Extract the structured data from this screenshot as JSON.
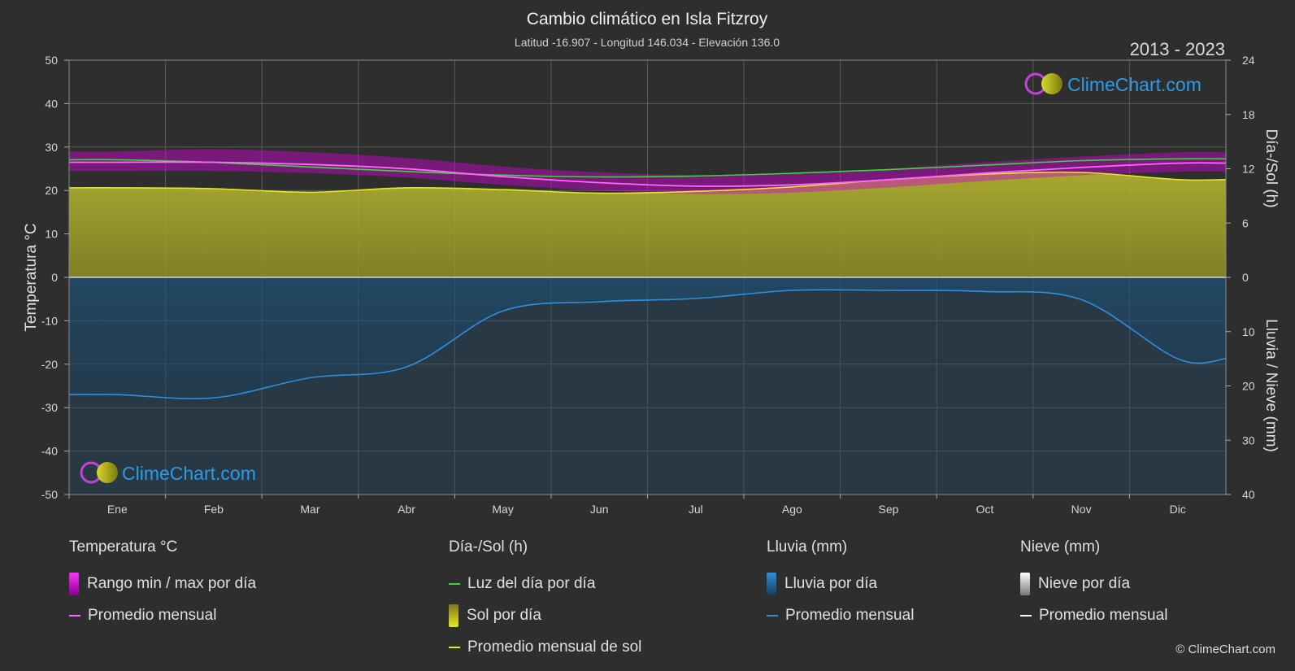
{
  "header": {
    "title": "Cambio climático en Isla Fitzroy",
    "subtitle": "Latitud -16.907 - Longitud 146.034 - Elevación 136.0",
    "years": "2013 - 2023"
  },
  "watermark": {
    "text": "ClimeChart.com"
  },
  "copyright": "© ClimeChart.com",
  "colors": {
    "background": "#2e2e2e",
    "temp_range": "#d400d4",
    "temp_avg": "#ff66ff",
    "daylight": "#33dd33",
    "sunshine_fill": "#b6b62c",
    "sunshine_avg": "#e8e822",
    "rain_fill": "#1f5e8f",
    "rain_avg": "#2e8fe0",
    "snow_avg": "#ffffff",
    "brand": "#2c9be8"
  },
  "chart_data": {
    "type": "line",
    "x_categories": [
      "Ene",
      "Feb",
      "Mar",
      "Abr",
      "May",
      "Jun",
      "Jul",
      "Ago",
      "Sep",
      "Oct",
      "Nov",
      "Dic"
    ],
    "axes": {
      "left": {
        "label": "Temperatura °C",
        "range": [
          -50,
          50
        ],
        "ticks": [
          50,
          40,
          30,
          20,
          10,
          0,
          -10,
          -20,
          -30,
          -40,
          -50
        ]
      },
      "right_top": {
        "label": "Día-/Sol (h)",
        "range": [
          0,
          24
        ],
        "ticks": [
          24,
          18,
          12,
          6,
          0
        ]
      },
      "right_bottom": {
        "label": "Lluvia / Nieve (mm)",
        "range": [
          0,
          40
        ],
        "ticks": [
          10,
          20,
          30,
          40
        ]
      }
    },
    "grid": true,
    "series": [
      {
        "name": "Luz del día por día",
        "axis": "hours",
        "values": [
          13.0,
          12.7,
          12.2,
          11.7,
          11.3,
          11.1,
          11.2,
          11.5,
          11.9,
          12.4,
          12.9,
          13.1
        ]
      },
      {
        "name": "Promedio mensual de sol",
        "axis": "hours",
        "values": [
          9.9,
          9.8,
          9.4,
          9.9,
          9.7,
          9.3,
          9.5,
          10.0,
          10.8,
          11.4,
          11.6,
          10.8
        ]
      },
      {
        "name": "Promedio mensual",
        "group": "temperature",
        "axis": "temp",
        "values": [
          26.5,
          26.5,
          26.0,
          25.0,
          23.2,
          21.8,
          21.0,
          21.3,
          22.5,
          24.0,
          25.3,
          26.3
        ]
      },
      {
        "name": "Rango min / max por día",
        "axis": "temp",
        "upper": [
          29.0,
          29.5,
          28.8,
          27.5,
          25.5,
          24.2,
          23.5,
          23.8,
          25.0,
          26.5,
          27.8,
          28.8
        ],
        "lower": [
          24.5,
          24.5,
          24.0,
          23.0,
          21.3,
          20.0,
          19.2,
          19.5,
          20.7,
          22.2,
          23.5,
          24.3
        ]
      },
      {
        "name": "Promedio mensual",
        "group": "rain",
        "axis": "mm",
        "values": [
          21.6,
          22.2,
          18.5,
          16.5,
          6.2,
          4.5,
          3.9,
          2.4,
          2.4,
          2.6,
          4.1,
          15.0
        ]
      }
    ]
  },
  "legend": {
    "groups": [
      {
        "title": "Temperatura °C",
        "items": [
          {
            "label": "Rango min / max por día",
            "swatch": "box",
            "color": "#d400d4"
          },
          {
            "label": "Promedio mensual",
            "swatch": "line",
            "color": "#ff66ff"
          }
        ]
      },
      {
        "title": "Día-/Sol (h)",
        "items": [
          {
            "label": "Luz del día por día",
            "swatch": "line",
            "color": "#33dd33"
          },
          {
            "label": "Sol por día",
            "swatch": "box",
            "color": "#c2c22e"
          },
          {
            "label": "Promedio mensual de sol",
            "swatch": "line",
            "color": "#e8e822"
          }
        ]
      },
      {
        "title": "Lluvia (mm)",
        "items": [
          {
            "label": "Lluvia por día",
            "swatch": "box",
            "color": "#2e8fe0"
          },
          {
            "label": "Promedio mensual",
            "swatch": "line",
            "color": "#2e8fe0"
          }
        ]
      },
      {
        "title": "Nieve (mm)",
        "items": [
          {
            "label": "Nieve por día",
            "swatch": "box",
            "color": "#dddddd"
          },
          {
            "label": "Promedio mensual",
            "swatch": "line",
            "color": "#ffffff"
          }
        ]
      }
    ]
  }
}
